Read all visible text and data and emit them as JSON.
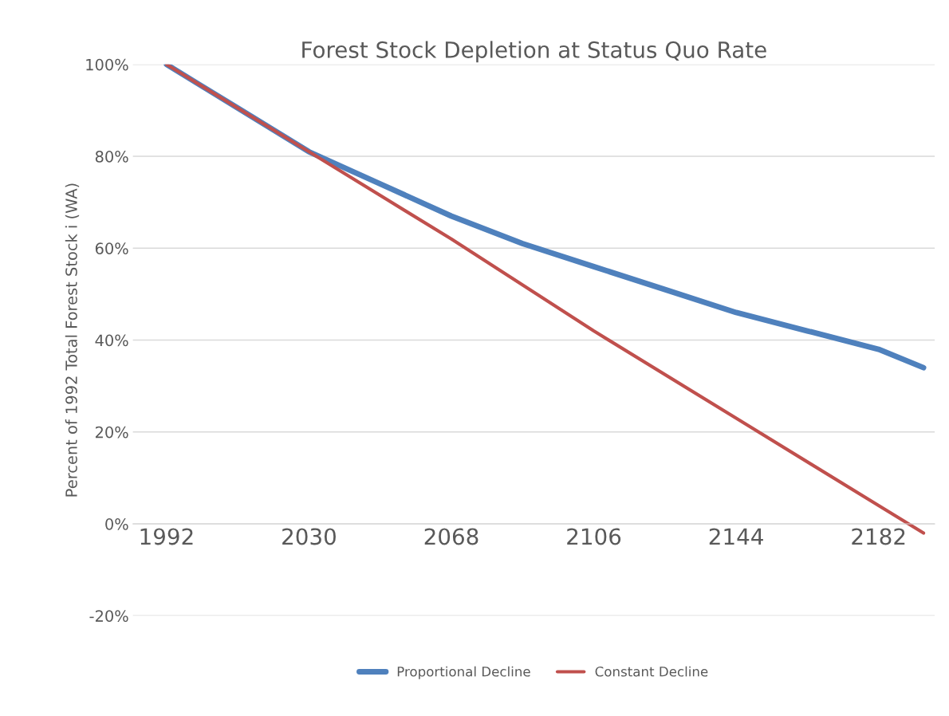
{
  "chart_data": {
    "type": "line",
    "title": "Forest Stock Depletion at Status Quo Rate",
    "ylabel": "Percent of 1992 Total Forest Stock i (WA)",
    "xlim": [
      1983,
      2197
    ],
    "xticks": [
      1992,
      2030,
      2068,
      2106,
      2144,
      2182
    ],
    "ylim": [
      -20,
      100
    ],
    "yticks": [
      {
        "value": -20,
        "label": "-20%"
      },
      {
        "value": 0,
        "label": "0%"
      },
      {
        "value": 20,
        "label": "20%"
      },
      {
        "value": 40,
        "label": "40%"
      },
      {
        "value": 60,
        "label": "60%"
      },
      {
        "value": 80,
        "label": "80%"
      },
      {
        "value": 100,
        "label": "100%"
      }
    ],
    "grid": "y",
    "legend": "bottom",
    "marker": "none",
    "line_style": "solid",
    "series": [
      {
        "name": "Proportional Decline",
        "color": "#4f81bd",
        "x": [
          1992,
          2011,
          2030,
          2049,
          2068,
          2087,
          2106,
          2125,
          2144,
          2163,
          2182,
          2194
        ],
        "values": [
          100,
          90.5,
          81,
          74,
          67,
          61,
          56,
          51,
          46,
          42,
          38,
          34
        ]
      },
      {
        "name": "Constant Decline",
        "color": "#c0504d",
        "x": [
          1992,
          2030,
          2068,
          2106,
          2144,
          2182,
          2194
        ],
        "values": [
          100,
          81,
          62,
          42,
          23,
          4,
          -2
        ]
      }
    ]
  }
}
